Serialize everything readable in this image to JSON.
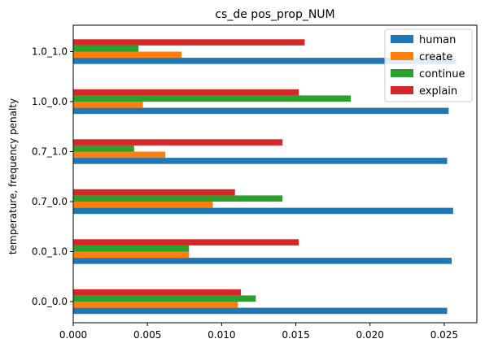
{
  "chart_data": {
    "type": "bar",
    "orientation": "horizontal",
    "title": "cs_de pos_prop_NUM",
    "xlabel": "",
    "ylabel": "temperature, frequency penalty",
    "xlim": [
      0,
      0.0272
    ],
    "xticks": [
      "0.000",
      "0.005",
      "0.010",
      "0.015",
      "0.020",
      "0.025"
    ],
    "xtick_values": [
      0,
      0.005,
      0.01,
      0.015,
      0.02,
      0.025
    ],
    "categories": [
      "0.0_0.0",
      "0.0_1.0",
      "0.7_0.0",
      "0.7_1.0",
      "1.0_0.0",
      "1.0_1.0"
    ],
    "grid": false,
    "legend_position": "top-right",
    "series": [
      {
        "name": "human",
        "color": "#1f77b4",
        "values": [
          0.0252,
          0.0255,
          0.0256,
          0.0252,
          0.0253,
          0.0258
        ]
      },
      {
        "name": "create",
        "color": "#ff7f0e",
        "values": [
          0.0111,
          0.0078,
          0.0094,
          0.0062,
          0.0047,
          0.0073
        ]
      },
      {
        "name": "continue",
        "color": "#2ca02c",
        "values": [
          0.0123,
          0.0078,
          0.0141,
          0.0041,
          0.0187,
          0.0044
        ]
      },
      {
        "name": "explain",
        "color": "#d62728",
        "values": [
          0.0113,
          0.0152,
          0.0109,
          0.0141,
          0.0152,
          0.0156
        ]
      }
    ]
  }
}
